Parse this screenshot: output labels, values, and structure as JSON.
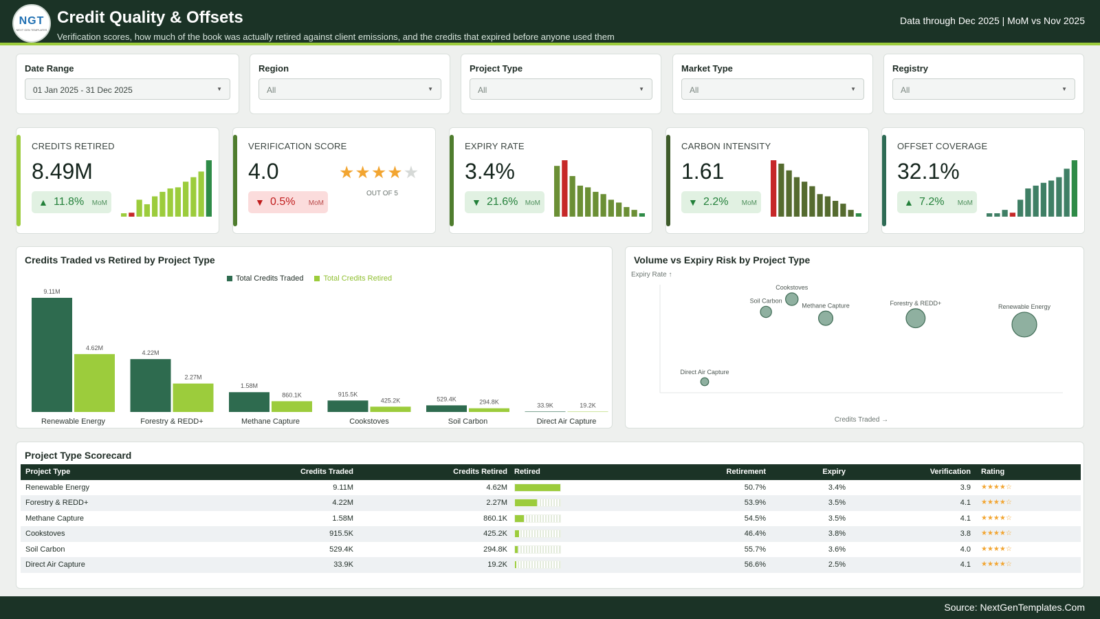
{
  "header": {
    "logo_text": "NGT",
    "logo_subtext": "NEXT GEN TEMPLATES",
    "title": "Credit Quality & Offsets",
    "subtitle": "Verification scores, how much of the book was actually retired against client emissions, and the credits that expired before anyone used them",
    "data_through": "Data through Dec 2025 | MoM vs Nov 2025"
  },
  "filters": [
    {
      "label": "Date Range",
      "value": "01 Jan 2025 - 31 Dec 2025"
    },
    {
      "label": "Region",
      "value": "All"
    },
    {
      "label": "Project Type",
      "value": "All"
    },
    {
      "label": "Market Type",
      "value": "All"
    },
    {
      "label": "Registry",
      "value": "All"
    }
  ],
  "kpis": [
    {
      "label": "CREDITS RETIRED",
      "value": "8.49M",
      "delta": "11.8%",
      "direction": "up",
      "delta_suffix": "MoM",
      "stripe_color": "#9ccc3c",
      "spark": [
        0.06,
        0.07,
        0.3,
        0.22,
        0.36,
        0.44,
        0.5,
        0.52,
        0.62,
        0.7,
        0.8,
        1.0
      ],
      "spark_colors": [
        "#9ccc3c",
        "#c62828",
        "#9ccc3c",
        "#9ccc3c",
        "#9ccc3c",
        "#9ccc3c",
        "#9ccc3c",
        "#9ccc3c",
        "#9ccc3c",
        "#9ccc3c",
        "#9ccc3c",
        "#2e8b47"
      ]
    },
    {
      "label": "VERIFICATION SCORE",
      "value": "4.0",
      "delta": "0.5%",
      "direction": "down",
      "delta_suffix": "MoM",
      "stripe_color": "#4f7d2e",
      "stars_filled": 4,
      "stars_total": 5,
      "out_of": "OUT OF 5"
    },
    {
      "label": "EXPIRY RATE",
      "value": "3.4%",
      "delta": "21.6%",
      "direction": "down_good",
      "delta_suffix": "MoM",
      "stripe_color": "#4f7d2e",
      "spark": [
        0.9,
        1.0,
        0.72,
        0.55,
        0.52,
        0.44,
        0.4,
        0.3,
        0.25,
        0.17,
        0.12,
        0.06
      ],
      "spark_colors": [
        "#6b8f35",
        "#c62828",
        "#6b8f35",
        "#6b8f35",
        "#6b8f35",
        "#6b8f35",
        "#6b8f35",
        "#6b8f35",
        "#6b8f35",
        "#6b8f35",
        "#6b8f35",
        "#2e8b47"
      ]
    },
    {
      "label": "CARBON INTENSITY",
      "value": "1.61",
      "delta": "2.2%",
      "direction": "down_good",
      "delta_suffix": "MoM",
      "stripe_color": "#3d5a2a",
      "spark": [
        1.0,
        0.94,
        0.82,
        0.7,
        0.62,
        0.54,
        0.4,
        0.36,
        0.28,
        0.23,
        0.12,
        0.06
      ],
      "spark_colors": [
        "#c62828",
        "#556b2f",
        "#556b2f",
        "#556b2f",
        "#556b2f",
        "#556b2f",
        "#556b2f",
        "#556b2f",
        "#556b2f",
        "#556b2f",
        "#556b2f",
        "#2e8b47"
      ]
    },
    {
      "label": "OFFSET COVERAGE",
      "value": "32.1%",
      "delta": "7.2%",
      "direction": "up",
      "delta_suffix": "MoM",
      "stripe_color": "#2e6b55",
      "spark": [
        0.06,
        0.06,
        0.12,
        0.07,
        0.3,
        0.5,
        0.55,
        0.6,
        0.64,
        0.7,
        0.85,
        1.0
      ],
      "spark_colors": [
        "#3f7f65",
        "#3f7f65",
        "#3f7f65",
        "#c62828",
        "#3f7f65",
        "#3f7f65",
        "#3f7f65",
        "#3f7f65",
        "#3f7f65",
        "#3f7f65",
        "#3f7f65",
        "#2e8b47"
      ]
    }
  ],
  "bar_panel": {
    "title": "Credits Traded vs Retired by Project Type"
  },
  "scatter_panel": {
    "title": "Volume vs Expiry Risk by Project Type"
  },
  "chart_data": [
    {
      "type": "bar",
      "title": "Credits Traded vs Retired by Project Type",
      "categories": [
        "Renewable Energy",
        "Forestry & REDD+",
        "Methane Capture",
        "Cookstoves",
        "Soil Carbon",
        "Direct Air Capture"
      ],
      "series": [
        {
          "name": "Total Credits Traded",
          "color": "#2e6b4f",
          "values": [
            9110000,
            4220000,
            1580000,
            915500,
            529400,
            33900
          ],
          "labels": [
            "9.11M",
            "4.22M",
            "1.58M",
            "915.5K",
            "529.4K",
            "33.9K"
          ]
        },
        {
          "name": "Total Credits Retired",
          "color": "#9ccc3c",
          "values": [
            4620000,
            2270000,
            860100,
            425200,
            294800,
            19200
          ],
          "labels": [
            "4.62M",
            "2.27M",
            "860.1K",
            "425.2K",
            "294.8K",
            "19.2K"
          ]
        }
      ],
      "legend": "top-center",
      "ylim": [
        0,
        9110000
      ]
    },
    {
      "type": "scatter",
      "title": "Volume vs Expiry Risk by Project Type",
      "xlabel": "Credits Traded →",
      "ylabel": "Expiry Rate ↑",
      "grid": false,
      "point_color": "#8fb0a0",
      "points": [
        {
          "name": "Renewable Energy",
          "x": 9110000,
          "y": 3.4,
          "size": 9110000
        },
        {
          "name": "Forestry & REDD+",
          "x": 4220000,
          "y": 3.5,
          "size": 4220000
        },
        {
          "name": "Methane Capture",
          "x": 1580000,
          "y": 3.5,
          "size": 1580000
        },
        {
          "name": "Cookstoves",
          "x": 915500,
          "y": 3.8,
          "size": 915500
        },
        {
          "name": "Soil Carbon",
          "x": 529400,
          "y": 3.6,
          "size": 529400
        },
        {
          "name": "Direct Air Capture",
          "x": 33900,
          "y": 2.5,
          "size": 33900
        }
      ]
    }
  ],
  "scorecard": {
    "title": "Project Type Scorecard",
    "columns": [
      "Project Type",
      "Credits Traded",
      "Credits Retired",
      "Retired",
      "Retirement",
      "Expiry",
      "Verification",
      "Rating"
    ],
    "rows": [
      {
        "project": "Renewable Energy",
        "traded": "9.11M",
        "retired": "4.62M",
        "retired_share": 1.0,
        "retirement": "50.7%",
        "expiry": "3.4%",
        "verification": "3.9",
        "rating": "★★★★☆"
      },
      {
        "project": "Forestry & REDD+",
        "traded": "4.22M",
        "retired": "2.27M",
        "retired_share": 0.49,
        "retirement": "53.9%",
        "expiry": "3.5%",
        "verification": "4.1",
        "rating": "★★★★☆"
      },
      {
        "project": "Methane Capture",
        "traded": "1.58M",
        "retired": "860.1K",
        "retired_share": 0.19,
        "retirement": "54.5%",
        "expiry": "3.5%",
        "verification": "4.1",
        "rating": "★★★★☆"
      },
      {
        "project": "Cookstoves",
        "traded": "915.5K",
        "retired": "425.2K",
        "retired_share": 0.09,
        "retirement": "46.4%",
        "expiry": "3.8%",
        "verification": "3.8",
        "rating": "★★★★☆"
      },
      {
        "project": "Soil Carbon",
        "traded": "529.4K",
        "retired": "294.8K",
        "retired_share": 0.064,
        "retirement": "55.7%",
        "expiry": "3.6%",
        "verification": "4.0",
        "rating": "★★★★☆"
      },
      {
        "project": "Direct Air Capture",
        "traded": "33.9K",
        "retired": "19.2K",
        "retired_share": 0.004,
        "retirement": "56.6%",
        "expiry": "2.5%",
        "verification": "4.1",
        "rating": "★★★★☆"
      }
    ]
  },
  "footer": {
    "source": "Source: NextGenTemplates.Com"
  }
}
